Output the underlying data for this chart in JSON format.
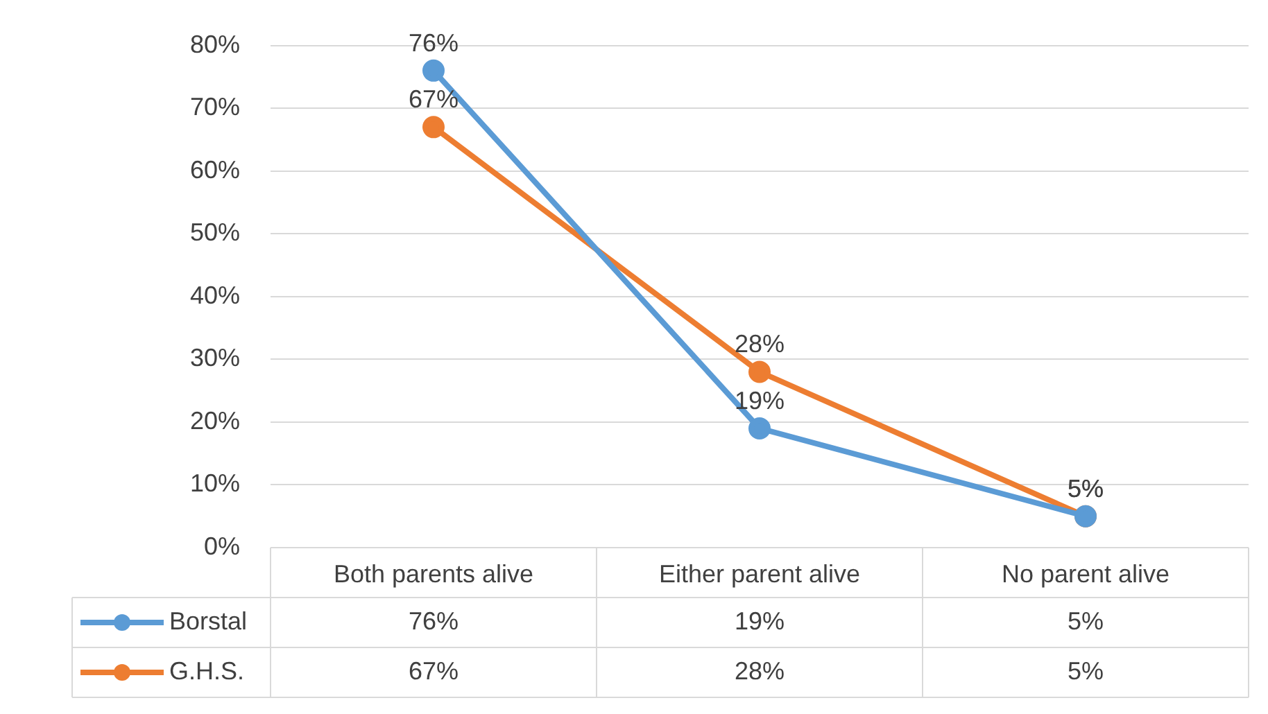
{
  "chart_data": {
    "type": "line",
    "categories": [
      "Both parents alive",
      "Either parent alive",
      "No parent alive"
    ],
    "series": [
      {
        "name": "Borstal",
        "color": "#5b9bd5",
        "values": [
          76,
          19,
          5
        ],
        "value_labels": [
          "76%",
          "19%",
          "5%"
        ]
      },
      {
        "name": "G.H.S.",
        "color": "#ed7d31",
        "values": [
          67,
          28,
          5
        ],
        "value_labels": [
          "67%",
          "28%",
          "5%"
        ]
      }
    ],
    "ylim": [
      0,
      80
    ],
    "yticks": [
      {
        "value": 0,
        "label": "0%"
      },
      {
        "value": 10,
        "label": "10%"
      },
      {
        "value": 20,
        "label": "20%"
      },
      {
        "value": 30,
        "label": "30%"
      },
      {
        "value": 40,
        "label": "40%"
      },
      {
        "value": 50,
        "label": "50%"
      },
      {
        "value": 60,
        "label": "60%"
      },
      {
        "value": 70,
        "label": "70%"
      },
      {
        "value": 80,
        "label": "80%"
      }
    ],
    "grid": "y",
    "legend": "bottom",
    "marker": "circle",
    "line_style": "solid"
  }
}
